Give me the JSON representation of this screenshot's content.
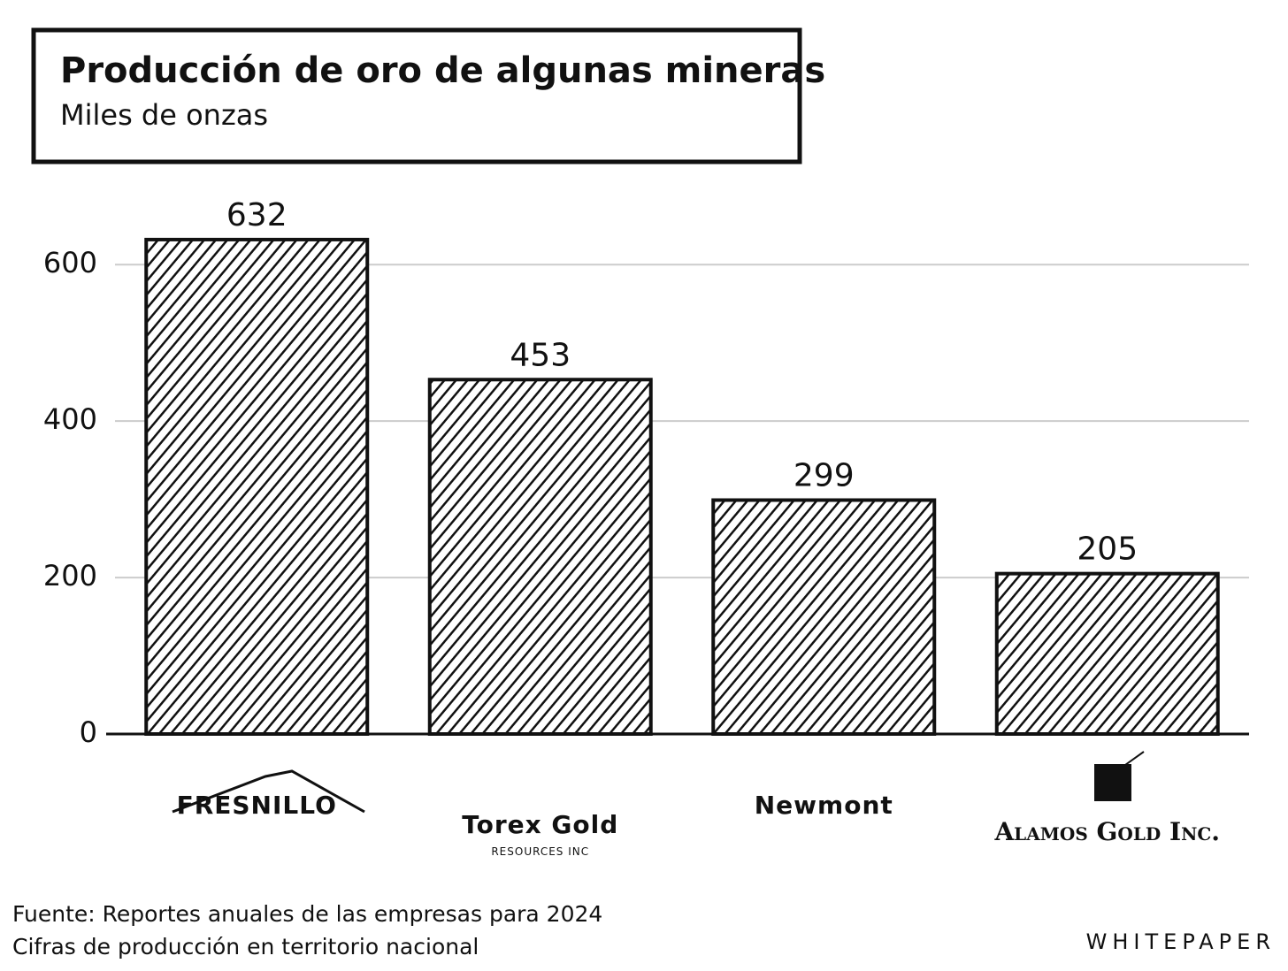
{
  "chart_data": {
    "type": "bar",
    "title": "Producción de oro de algunas mineras",
    "subtitle": "Miles de onzas",
    "categories": [
      "FRESNILLO",
      "Torex Gold\nRESOURCES INC",
      "Newmont",
      "Alamos Gold Inc."
    ],
    "values": [
      632,
      453,
      299,
      205
    ],
    "color": "#111111",
    "ylim": [
      0,
      650
    ],
    "yticks": [
      0,
      200,
      400,
      600
    ],
    "grid": true,
    "source": "Fuente: Reportes anuales de las empresas para 2024",
    "note": "Cifras de producción en territorio nacional",
    "brand": "WHITEPAPER"
  }
}
